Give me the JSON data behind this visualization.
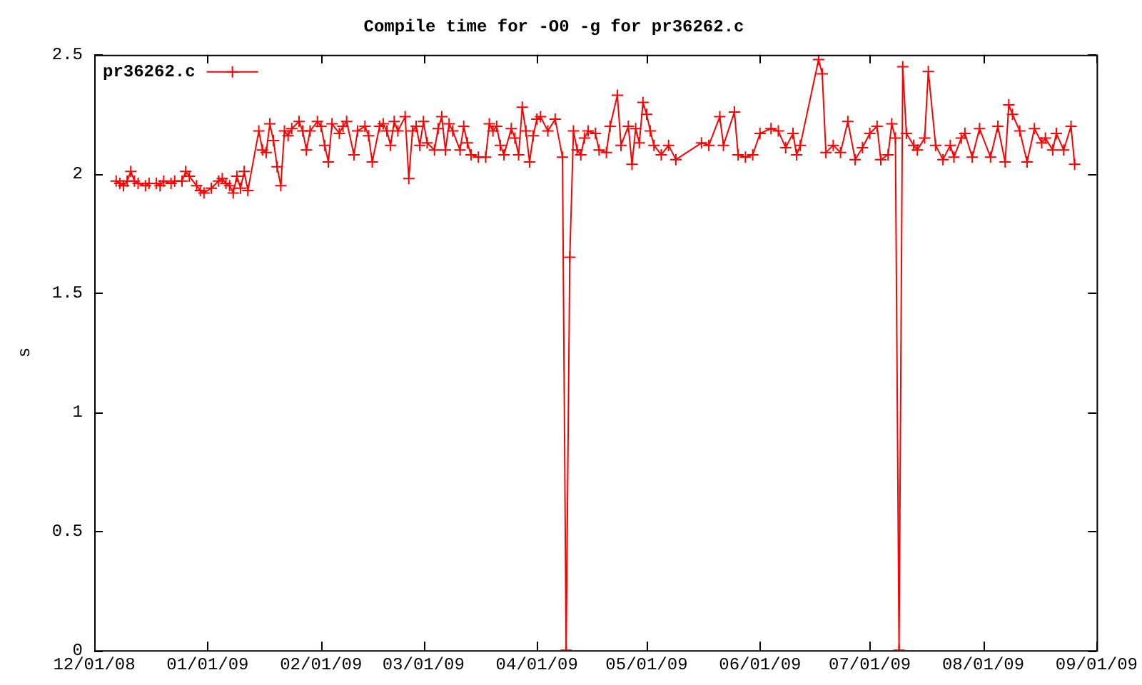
{
  "chart_data": {
    "type": "line",
    "title": "Compile time for -O0 -g for pr36262.c",
    "ylabel": "s",
    "xlim": [
      "2008-12-01",
      "2009-09-01"
    ],
    "xticks": [
      {
        "value": "2008-12-01",
        "label": "12/01/08"
      },
      {
        "value": "2009-01-01",
        "label": "01/01/09"
      },
      {
        "value": "2009-02-01",
        "label": "02/01/09"
      },
      {
        "value": "2009-03-01",
        "label": "03/01/09"
      },
      {
        "value": "2009-04-01",
        "label": "04/01/09"
      },
      {
        "value": "2009-05-01",
        "label": "05/01/09"
      },
      {
        "value": "2009-06-01",
        "label": "06/01/09"
      },
      {
        "value": "2009-07-01",
        "label": "07/01/09"
      },
      {
        "value": "2009-08-01",
        "label": "08/01/09"
      },
      {
        "value": "2009-09-01",
        "label": "09/01/09"
      }
    ],
    "ylim": [
      0,
      2.5
    ],
    "yticks": [
      0,
      0.5,
      1,
      1.5,
      2,
      2.5
    ],
    "grid": false,
    "legend": "top left",
    "marker": "cross",
    "line_style": "solid",
    "x": [
      "2008-12-07",
      "2008-12-08",
      "2008-12-09",
      "2008-12-10",
      "2008-12-11",
      "2008-12-12",
      "2008-12-13",
      "2008-12-15",
      "2008-12-16",
      "2008-12-18",
      "2008-12-19",
      "2008-12-20",
      "2008-12-22",
      "2008-12-23",
      "2008-12-25",
      "2008-12-26",
      "2008-12-27",
      "2008-12-29",
      "2008-12-30",
      "2008-12-31",
      "2009-01-02",
      "2009-01-04",
      "2009-01-05",
      "2009-01-06",
      "2009-01-07",
      "2009-01-08",
      "2009-01-09",
      "2009-01-10",
      "2009-01-11",
      "2009-01-12",
      "2009-01-15",
      "2009-01-16",
      "2009-01-17",
      "2009-01-18",
      "2009-01-19",
      "2009-01-20",
      "2009-01-21",
      "2009-01-22",
      "2009-01-23",
      "2009-01-24",
      "2009-01-26",
      "2009-01-27",
      "2009-01-28",
      "2009-01-29",
      "2009-01-31",
      "2009-02-01",
      "2009-02-02",
      "2009-02-03",
      "2009-02-04",
      "2009-02-06",
      "2009-02-07",
      "2009-02-08",
      "2009-02-10",
      "2009-02-11",
      "2009-02-13",
      "2009-02-14",
      "2009-02-15",
      "2009-02-17",
      "2009-02-18",
      "2009-02-19",
      "2009-02-20",
      "2009-02-21",
      "2009-02-22",
      "2009-02-24",
      "2009-02-25",
      "2009-02-26",
      "2009-02-27",
      "2009-02-28",
      "2009-03-01",
      "2009-03-02",
      "2009-03-04",
      "2009-03-05",
      "2009-03-06",
      "2009-03-07",
      "2009-03-08",
      "2009-03-09",
      "2009-03-11",
      "2009-03-12",
      "2009-03-13",
      "2009-03-14",
      "2009-03-16",
      "2009-03-18",
      "2009-03-19",
      "2009-03-20",
      "2009-03-21",
      "2009-03-22",
      "2009-03-23",
      "2009-03-25",
      "2009-03-26",
      "2009-03-27",
      "2009-03-28",
      "2009-03-29",
      "2009-03-30",
      "2009-03-31",
      "2009-04-01",
      "2009-04-02",
      "2009-04-04",
      "2009-04-06",
      "2009-04-08",
      "2009-04-09",
      "2009-04-10",
      "2009-04-11",
      "2009-04-12",
      "2009-04-13",
      "2009-04-14",
      "2009-04-15",
      "2009-04-17",
      "2009-04-18",
      "2009-04-20",
      "2009-04-21",
      "2009-04-23",
      "2009-04-24",
      "2009-04-26",
      "2009-04-27",
      "2009-04-28",
      "2009-04-29",
      "2009-04-30",
      "2009-05-01",
      "2009-05-02",
      "2009-05-03",
      "2009-05-05",
      "2009-05-07",
      "2009-05-09",
      "2009-05-16",
      "2009-05-18",
      "2009-05-21",
      "2009-05-22",
      "2009-05-25",
      "2009-05-26",
      "2009-05-28",
      "2009-05-30",
      "2009-06-01",
      "2009-06-04",
      "2009-06-06",
      "2009-06-08",
      "2009-06-10",
      "2009-06-11",
      "2009-06-12",
      "2009-06-17",
      "2009-06-18",
      "2009-06-19",
      "2009-06-21",
      "2009-06-23",
      "2009-06-25",
      "2009-06-27",
      "2009-06-29",
      "2009-07-01",
      "2009-07-03",
      "2009-07-04",
      "2009-07-06",
      "2009-07-07",
      "2009-07-08",
      "2009-07-09",
      "2009-07-10",
      "2009-07-11",
      "2009-07-13",
      "2009-07-14",
      "2009-07-16",
      "2009-07-17",
      "2009-07-19",
      "2009-07-21",
      "2009-07-23",
      "2009-07-24",
      "2009-07-26",
      "2009-07-27",
      "2009-07-29",
      "2009-07-31",
      "2009-08-03",
      "2009-08-05",
      "2009-08-07",
      "2009-08-08",
      "2009-08-09",
      "2009-08-11",
      "2009-08-13",
      "2009-08-15",
      "2009-08-17",
      "2009-08-18",
      "2009-08-20",
      "2009-08-21",
      "2009-08-23",
      "2009-08-25",
      "2009-08-26"
    ],
    "series": [
      {
        "name": "pr36262.c",
        "color": "#ff0000",
        "values": [
          1.97,
          1.96,
          1.95,
          1.97,
          2.01,
          1.97,
          1.96,
          1.95,
          1.96,
          1.96,
          1.95,
          1.97,
          1.96,
          1.97,
          1.97,
          2.01,
          1.99,
          1.95,
          1.93,
          1.92,
          1.94,
          1.97,
          1.98,
          1.96,
          1.95,
          1.92,
          1.99,
          1.94,
          2.01,
          1.93,
          2.18,
          2.1,
          2.09,
          2.21,
          2.14,
          2.03,
          1.95,
          2.18,
          2.16,
          2.19,
          2.22,
          2.18,
          2.1,
          2.18,
          2.22,
          2.2,
          2.12,
          2.05,
          2.21,
          2.17,
          2.2,
          2.22,
          2.08,
          2.18,
          2.2,
          2.16,
          2.05,
          2.2,
          2.21,
          2.18,
          2.12,
          2.22,
          2.18,
          2.24,
          1.98,
          2.18,
          2.2,
          2.12,
          2.22,
          2.13,
          2.1,
          2.19,
          2.24,
          2.1,
          2.21,
          2.18,
          2.1,
          2.2,
          2.13,
          2.08,
          2.07,
          2.07,
          2.21,
          2.18,
          2.2,
          2.12,
          2.08,
          2.19,
          2.15,
          2.08,
          2.28,
          2.18,
          2.05,
          2.16,
          2.23,
          2.24,
          2.18,
          2.23,
          2.07,
          0,
          1.65,
          2.18,
          2.1,
          2.08,
          2.15,
          2.18,
          2.17,
          2.1,
          2.09,
          2.2,
          2.33,
          2.12,
          2.2,
          2.04,
          2.19,
          2.13,
          2.3,
          2.25,
          2.18,
          2.12,
          2.08,
          2.12,
          2.06,
          2.13,
          2.12,
          2.24,
          2.12,
          2.26,
          2.08,
          2.07,
          2.08,
          2.17,
          2.19,
          2.18,
          2.11,
          2.17,
          2.08,
          2.12,
          2.48,
          2.42,
          2.09,
          2.12,
          2.09,
          2.22,
          2.06,
          2.11,
          2.17,
          2.2,
          2.06,
          2.08,
          2.21,
          2.15,
          0,
          2.45,
          2.17,
          2.12,
          2.1,
          2.15,
          2.43,
          2.12,
          2.06,
          2.12,
          2.07,
          2.15,
          2.17,
          2.07,
          2.19,
          2.07,
          2.2,
          2.05,
          2.29,
          2.25,
          2.18,
          2.05,
          2.19,
          2.13,
          2.15,
          2.1,
          2.17,
          2.1,
          2.2,
          2.04
        ]
      }
    ]
  }
}
